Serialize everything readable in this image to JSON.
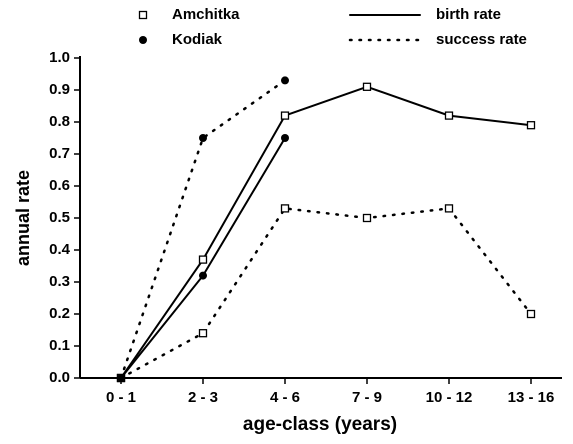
{
  "chart_data": {
    "type": "line",
    "xlabel": "age-class (years)",
    "ylabel": "annual rate",
    "categories": [
      "0 - 1",
      "2 - 3",
      "4 - 6",
      "7 - 9",
      "10 - 12",
      "13 - 16"
    ],
    "markers": [
      {
        "label": "Amchitka",
        "shape": "square"
      },
      {
        "label": "Kodiak",
        "shape": "circle"
      }
    ],
    "lines": [
      {
        "label": "birth rate",
        "style": "solid"
      },
      {
        "label": "success rate",
        "style": "dotted"
      }
    ],
    "series": [
      {
        "marker": 0,
        "line": 0,
        "color": "#000000",
        "values": [
          0,
          0.37,
          0.82,
          0.91,
          0.82,
          0.79
        ]
      },
      {
        "marker": 1,
        "line": 0,
        "color": "#000000",
        "values": [
          0,
          0.32,
          0.75,
          null,
          null,
          null
        ]
      },
      {
        "marker": 0,
        "line": 1,
        "color": "#000000",
        "values": [
          0,
          0.14,
          0.53,
          0.5,
          0.53,
          0.2
        ]
      },
      {
        "marker": 1,
        "line": 1,
        "color": "#000000",
        "values": [
          0,
          0.75,
          0.93,
          null,
          null,
          null
        ]
      }
    ],
    "ylim": [
      0,
      1
    ],
    "yticks": [
      {
        "value": 0,
        "label": "0.0"
      },
      0.1,
      0.2,
      0.3,
      0.4,
      0.5,
      0.6,
      0.7,
      0.8,
      0.9,
      {
        "value": 1,
        "label": "1.0"
      }
    ]
  }
}
